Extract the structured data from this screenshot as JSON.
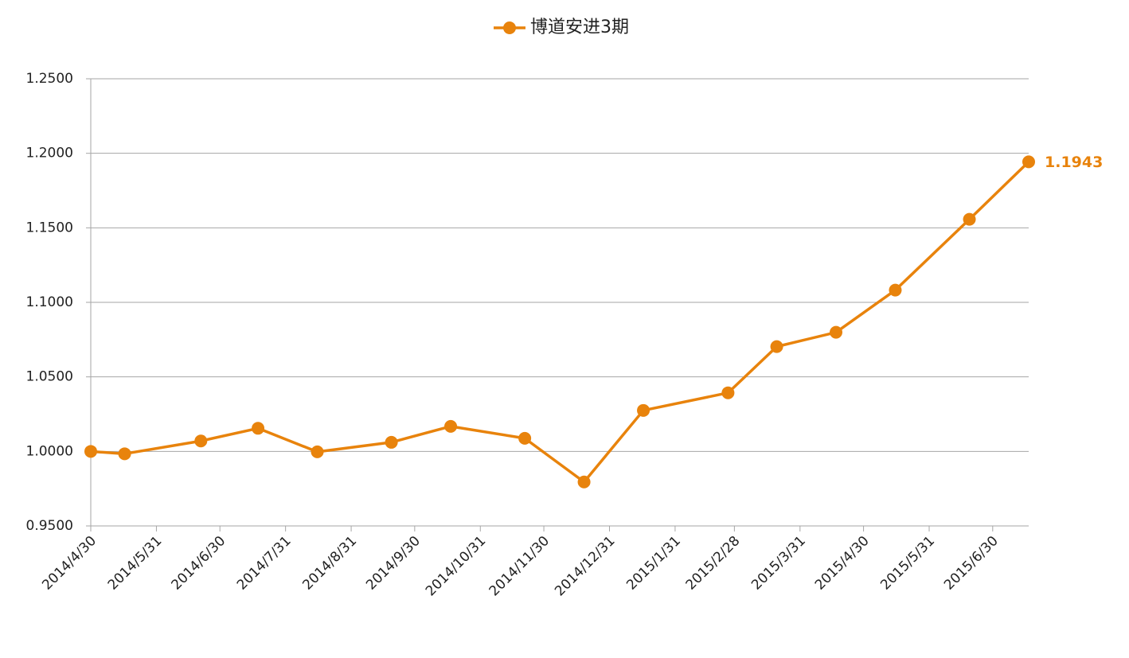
{
  "chart_data": {
    "type": "line",
    "x": [
      "2014/4/30",
      "2014/5/16",
      "2014/6/21",
      "2014/7/18",
      "2014/8/15",
      "2014/9/19",
      "2014/10/17",
      "2014/11/21",
      "2014/12/19",
      "2015/1/16",
      "2015/2/25",
      "2015/3/20",
      "2015/4/17",
      "2015/5/15",
      "2015/6/19",
      "2015/7/17"
    ],
    "series": [
      {
        "name": "博道安进3期",
        "color": "#e8830c",
        "values": [
          1.0,
          0.9984,
          1.007,
          1.0155,
          0.9997,
          1.0061,
          1.0168,
          1.0088,
          0.9795,
          1.0275,
          1.0393,
          1.0703,
          1.0799,
          1.1082,
          1.1557,
          1.1943
        ],
        "value_labels": [
          null,
          null,
          null,
          null,
          null,
          null,
          null,
          null,
          null,
          null,
          null,
          null,
          null,
          null,
          null,
          "1.1943"
        ]
      }
    ],
    "xlim": [
      "2014/4/30",
      "2015/7/17"
    ],
    "xticks": [
      "2014/4/30",
      "2014/5/31",
      "2014/6/30",
      "2014/7/31",
      "2014/8/31",
      "2014/9/30",
      "2014/10/31",
      "2014/11/30",
      "2014/12/31",
      "2015/1/31",
      "2015/2/28",
      "2015/3/31",
      "2015/4/30",
      "2015/5/31",
      "2015/6/30"
    ],
    "ylim": [
      0.95,
      1.25
    ],
    "yticks": [
      {
        "value": 0.95,
        "label": "0.9500"
      },
      {
        "value": 1.0,
        "label": "1.0000"
      },
      {
        "value": 1.05,
        "label": "1.0500"
      },
      {
        "value": 1.1,
        "label": "1.1000"
      },
      {
        "value": 1.15,
        "label": "1.1500"
      },
      {
        "value": 1.2,
        "label": "1.2000"
      },
      {
        "value": 1.25,
        "label": "1.2500"
      }
    ],
    "grid": true,
    "legend": "top"
  }
}
